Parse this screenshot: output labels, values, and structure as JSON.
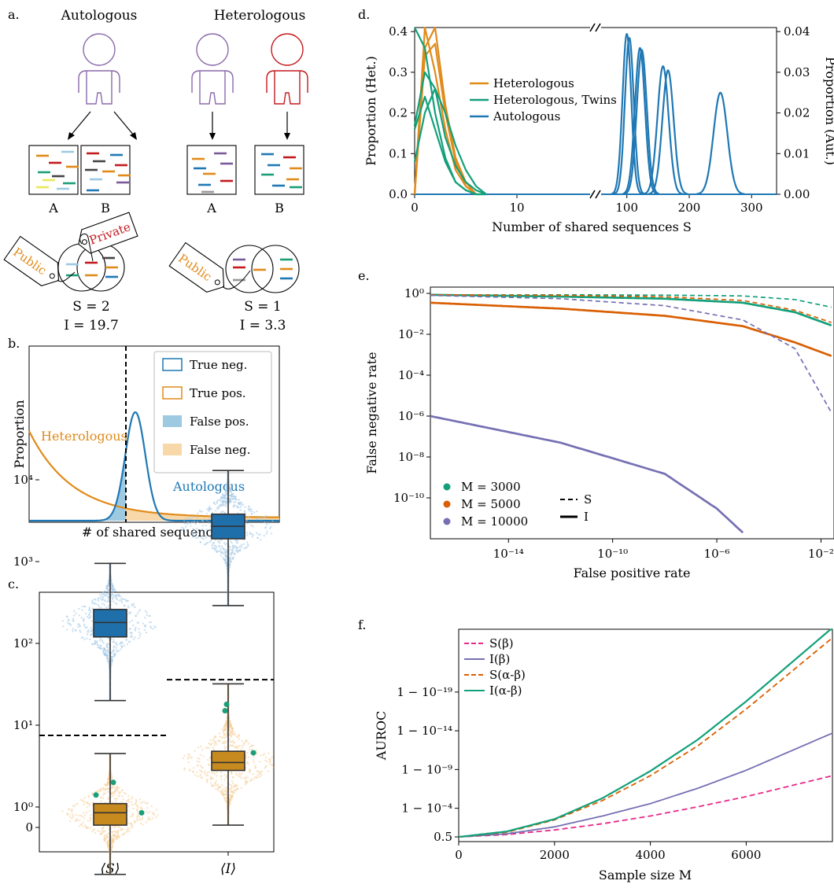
{
  "panels": {
    "a": "a.",
    "b": "b.",
    "c": "c.",
    "d": "d.",
    "e": "e.",
    "f": "f."
  },
  "colors": {
    "purple": "#8b6aaa",
    "red": "#c4191f",
    "blue": "#1f78b4",
    "orange": "#e08b1a",
    "green": "#1b9e77",
    "vermillion": "#d95f02",
    "lavender": "#7570b3",
    "pink": "#e7298a",
    "light_blue": "#9ecae1",
    "light_orange": "#f8d8a8",
    "teal": "#12a07a"
  },
  "panel_a": {
    "autologous": "Autologous",
    "heterologous": "Heterologous",
    "box_a": "A",
    "box_b": "B",
    "tag_public": "Public",
    "tag_private": "Private",
    "auto_s": "S = 2",
    "auto_i": "I = 19.7",
    "het_s": "S = 1",
    "het_i": "I = 3.3"
  },
  "panel_b": {
    "ylabel": "Proportion",
    "xlabel": "# of shared sequences",
    "heterologous_label": "Heterologous",
    "autologous_label": "Autologous",
    "legend": [
      "True neg.",
      "True pos.",
      "False pos.",
      "False neg."
    ]
  },
  "panel_c": {
    "categories": [
      "⟨S⟩",
      "⟨I⟩"
    ],
    "yticks": [
      "0",
      "10⁰",
      "10¹",
      "10²",
      "10³",
      "10⁴"
    ],
    "autologous": [
      {
        "min": 20,
        "q1": 120,
        "median": 180,
        "q3": 260,
        "max": 950
      },
      {
        "min": 290,
        "q1": 1900,
        "median": 2700,
        "q3": 3800,
        "max": 13000
      }
    ],
    "heterologous": [
      {
        "min": 0.15,
        "q1": 0.6,
        "median": 0.85,
        "q3": 1.1,
        "max": 4.5
      },
      {
        "min": 0.6,
        "q1": 2.8,
        "median": 3.5,
        "q3": 4.8,
        "max": 32
      }
    ],
    "outliers": [
      [
        1.4,
        2.0,
        0.85
      ],
      [
        4.6,
        15,
        18
      ]
    ],
    "thresholds": [
      7.5,
      36
    ]
  },
  "chart_data": [
    {
      "type": "line",
      "xlabel": "Number of shared sequences S",
      "ylabel": "Proportion (Het.)",
      "ylabel_right": "Proportion (Aut.)",
      "x_ticks_left": [
        "0",
        "10"
      ],
      "x_ticks_right": [
        "100",
        "200",
        "300"
      ],
      "xlim_left": [
        0,
        17
      ],
      "xlim_right": [
        60,
        340
      ],
      "ylim_left": [
        0,
        0.41
      ],
      "ylim_right": [
        0,
        0.041
      ],
      "yticks_left": [
        "0.0",
        "0.1",
        "0.2",
        "0.3",
        "0.4"
      ],
      "yticks_right": [
        "0.00",
        "0.01",
        "0.02",
        "0.03",
        "0.04"
      ],
      "legend": [
        "Heterologous",
        "Heterologous, Twins",
        "Autologous"
      ],
      "series": [
        {
          "name": "Heterologous",
          "x": [
            0,
            1,
            2,
            3,
            4,
            5
          ],
          "y": [
            0.36,
            0.36,
            0.2,
            0.08,
            0.03,
            0.0
          ]
        },
        {
          "name": "Heterologous, Twins",
          "x": [
            0,
            1,
            2,
            3,
            4,
            5,
            6,
            7
          ],
          "y": [
            0.17,
            0.3,
            0.25,
            0.14,
            0.07,
            0.03,
            0.01,
            0.0
          ]
        },
        {
          "name": "Autologous",
          "x": [
            100,
            104,
            122,
            125,
            158,
            165,
            250
          ],
          "y": [
            0.04,
            0.039,
            0.036,
            0.035,
            0.031,
            0.03,
            0.025
          ]
        }
      ]
    },
    {
      "type": "line",
      "xlabel": "False positive rate",
      "ylabel": "False negative rate",
      "xscale": "log",
      "yscale": "log",
      "xticks": [
        "10⁻¹⁴",
        "10⁻¹⁰",
        "10⁻⁶",
        "10⁻²"
      ],
      "yticks": [
        "10⁰",
        "10⁻²",
        "10⁻⁴",
        "10⁻⁶",
        "10⁻⁸",
        "10⁻¹⁰"
      ],
      "legend_markers": [
        "M = 3000",
        "M = 5000",
        "M = 10000"
      ],
      "legend_lines": [
        "S",
        "I"
      ],
      "series": [
        {
          "name": "M = 3000",
          "measure": "S",
          "x": [
            1e-17,
            1e-12,
            1e-08,
            1e-05,
            0.001,
            0.03
          ],
          "y": [
            0.85,
            0.85,
            0.82,
            0.75,
            0.5,
            0.2
          ]
        },
        {
          "name": "M = 3000",
          "measure": "I",
          "x": [
            1e-17,
            1e-12,
            1e-08,
            1e-05,
            0.001,
            0.03
          ],
          "y": [
            0.85,
            0.7,
            0.55,
            0.35,
            0.12,
            0.025
          ]
        },
        {
          "name": "M = 5000",
          "measure": "S",
          "x": [
            1e-17,
            1e-12,
            1e-08,
            1e-05,
            0.001,
            0.03
          ],
          "y": [
            0.85,
            0.8,
            0.68,
            0.45,
            0.15,
            0.035
          ]
        },
        {
          "name": "M = 5000",
          "measure": "I",
          "x": [
            1e-17,
            1e-12,
            1e-08,
            1e-05,
            0.001,
            0.03
          ],
          "y": [
            0.35,
            0.18,
            0.08,
            0.025,
            0.004,
            0.0008
          ]
        },
        {
          "name": "M = 10000",
          "measure": "S",
          "x": [
            1e-17,
            1e-12,
            1e-08,
            1e-05,
            0.001,
            0.03
          ],
          "y": [
            0.8,
            0.55,
            0.25,
            0.05,
            0.002,
            1e-06
          ]
        },
        {
          "name": "M = 10000",
          "measure": "I",
          "x": [
            1e-17,
            1e-12,
            1e-08,
            1e-06,
            1e-05
          ],
          "y": [
            1e-06,
            5e-08,
            1.5e-09,
            3e-11,
            2e-12
          ]
        }
      ]
    },
    {
      "type": "line",
      "xlabel": "Sample size M",
      "ylabel": "AUROC",
      "xlim": [
        0,
        7800
      ],
      "xticks": [
        "0",
        "2000",
        "4000",
        "6000"
      ],
      "yticks": [
        "0.5",
        "1 − 10⁻⁴",
        "1 − 10⁻⁹",
        "1 − 10⁻¹⁴",
        "1 − 10⁻¹⁹"
      ],
      "legend": [
        "S(β)",
        "I(β)",
        "S(α-β)",
        "I(α-β)"
      ],
      "series": [
        {
          "name": "S(β)",
          "x": [
            0,
            1000,
            2000,
            3000,
            4000,
            5000,
            6000,
            7800
          ],
          "y_neglog10_gap": [
            0.3,
            0.6,
            1.2,
            2.0,
            3.0,
            4.2,
            5.5,
            8.2
          ]
        },
        {
          "name": "I(β)",
          "x": [
            0,
            1000,
            2000,
            3000,
            4000,
            5000,
            6000,
            7800
          ],
          "y_neglog10_gap": [
            0.3,
            0.7,
            1.6,
            3.0,
            4.6,
            6.6,
            8.9,
            13.7
          ]
        },
        {
          "name": "S(α-β)",
          "x": [
            0,
            1000,
            2000,
            3000,
            4000,
            5000,
            6000,
            7800
          ],
          "y_neglog10_gap": [
            0.3,
            0.9,
            2.5,
            5.0,
            8.2,
            12.1,
            16.8,
            26.0
          ]
        },
        {
          "name": "I(α-β)",
          "x": [
            0,
            1000,
            2000,
            3000,
            4000,
            5000,
            6000,
            7800
          ],
          "y_neglog10_gap": [
            0.3,
            1.0,
            2.6,
            5.3,
            8.8,
            12.9,
            17.8,
            27.3
          ]
        }
      ]
    }
  ]
}
